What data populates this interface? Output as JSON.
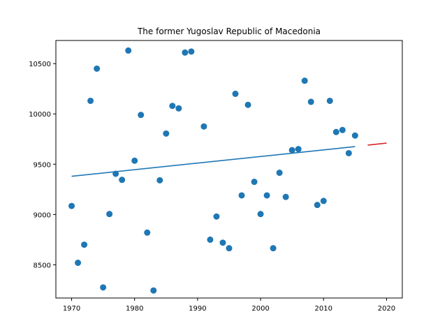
{
  "chart_data": {
    "type": "scatter",
    "title": "The former Yugoslav Republic of Macedonia",
    "xlabel": "",
    "ylabel": "",
    "xlim": [
      1967.5,
      2022.5
    ],
    "ylim": [
      8170,
      10730
    ],
    "x_ticks": [
      1970,
      1980,
      1990,
      2000,
      2010,
      2020
    ],
    "y_ticks": [
      8500,
      9000,
      9500,
      10000,
      10500
    ],
    "grid": false,
    "colors": {
      "points": "#1f77b4",
      "fit": "#1f77b4",
      "forecast": "#d62728"
    },
    "series": [
      {
        "kind": "points",
        "values": [
          [
            1970,
            9085
          ],
          [
            1971,
            8520
          ],
          [
            1972,
            8700
          ],
          [
            1973,
            10130
          ],
          [
            1974,
            10450
          ],
          [
            1975,
            8275
          ],
          [
            1976,
            9005
          ],
          [
            1977,
            9405
          ],
          [
            1978,
            9345
          ],
          [
            1979,
            10630
          ],
          [
            1980,
            9535
          ],
          [
            1981,
            9990
          ],
          [
            1982,
            8820
          ],
          [
            1983,
            8245
          ],
          [
            1984,
            9340
          ],
          [
            1985,
            9805
          ],
          [
            1986,
            10080
          ],
          [
            1987,
            10055
          ],
          [
            1988,
            10610
          ],
          [
            1989,
            10620
          ],
          [
            1991,
            9875
          ],
          [
            1992,
            8750
          ],
          [
            1993,
            8980
          ],
          [
            1994,
            8720
          ],
          [
            1995,
            8665
          ],
          [
            1996,
            10200
          ],
          [
            1997,
            9190
          ],
          [
            1998,
            10090
          ],
          [
            1999,
            9325
          ],
          [
            2000,
            9005
          ],
          [
            2001,
            9190
          ],
          [
            2002,
            8665
          ],
          [
            2003,
            9415
          ],
          [
            2004,
            9175
          ],
          [
            2005,
            9640
          ],
          [
            2006,
            9650
          ],
          [
            2007,
            10330
          ],
          [
            2008,
            10120
          ],
          [
            2009,
            9095
          ],
          [
            2010,
            9135
          ],
          [
            2011,
            10130
          ],
          [
            2012,
            9820
          ],
          [
            2013,
            9840
          ],
          [
            2014,
            9610
          ],
          [
            2015,
            9785
          ]
        ]
      },
      {
        "kind": "fit",
        "x": [
          1970,
          2015
        ],
        "y": [
          9380,
          9675
        ]
      },
      {
        "kind": "forecast",
        "x": [
          2017,
          2020
        ],
        "y": [
          9690,
          9710
        ]
      }
    ]
  }
}
